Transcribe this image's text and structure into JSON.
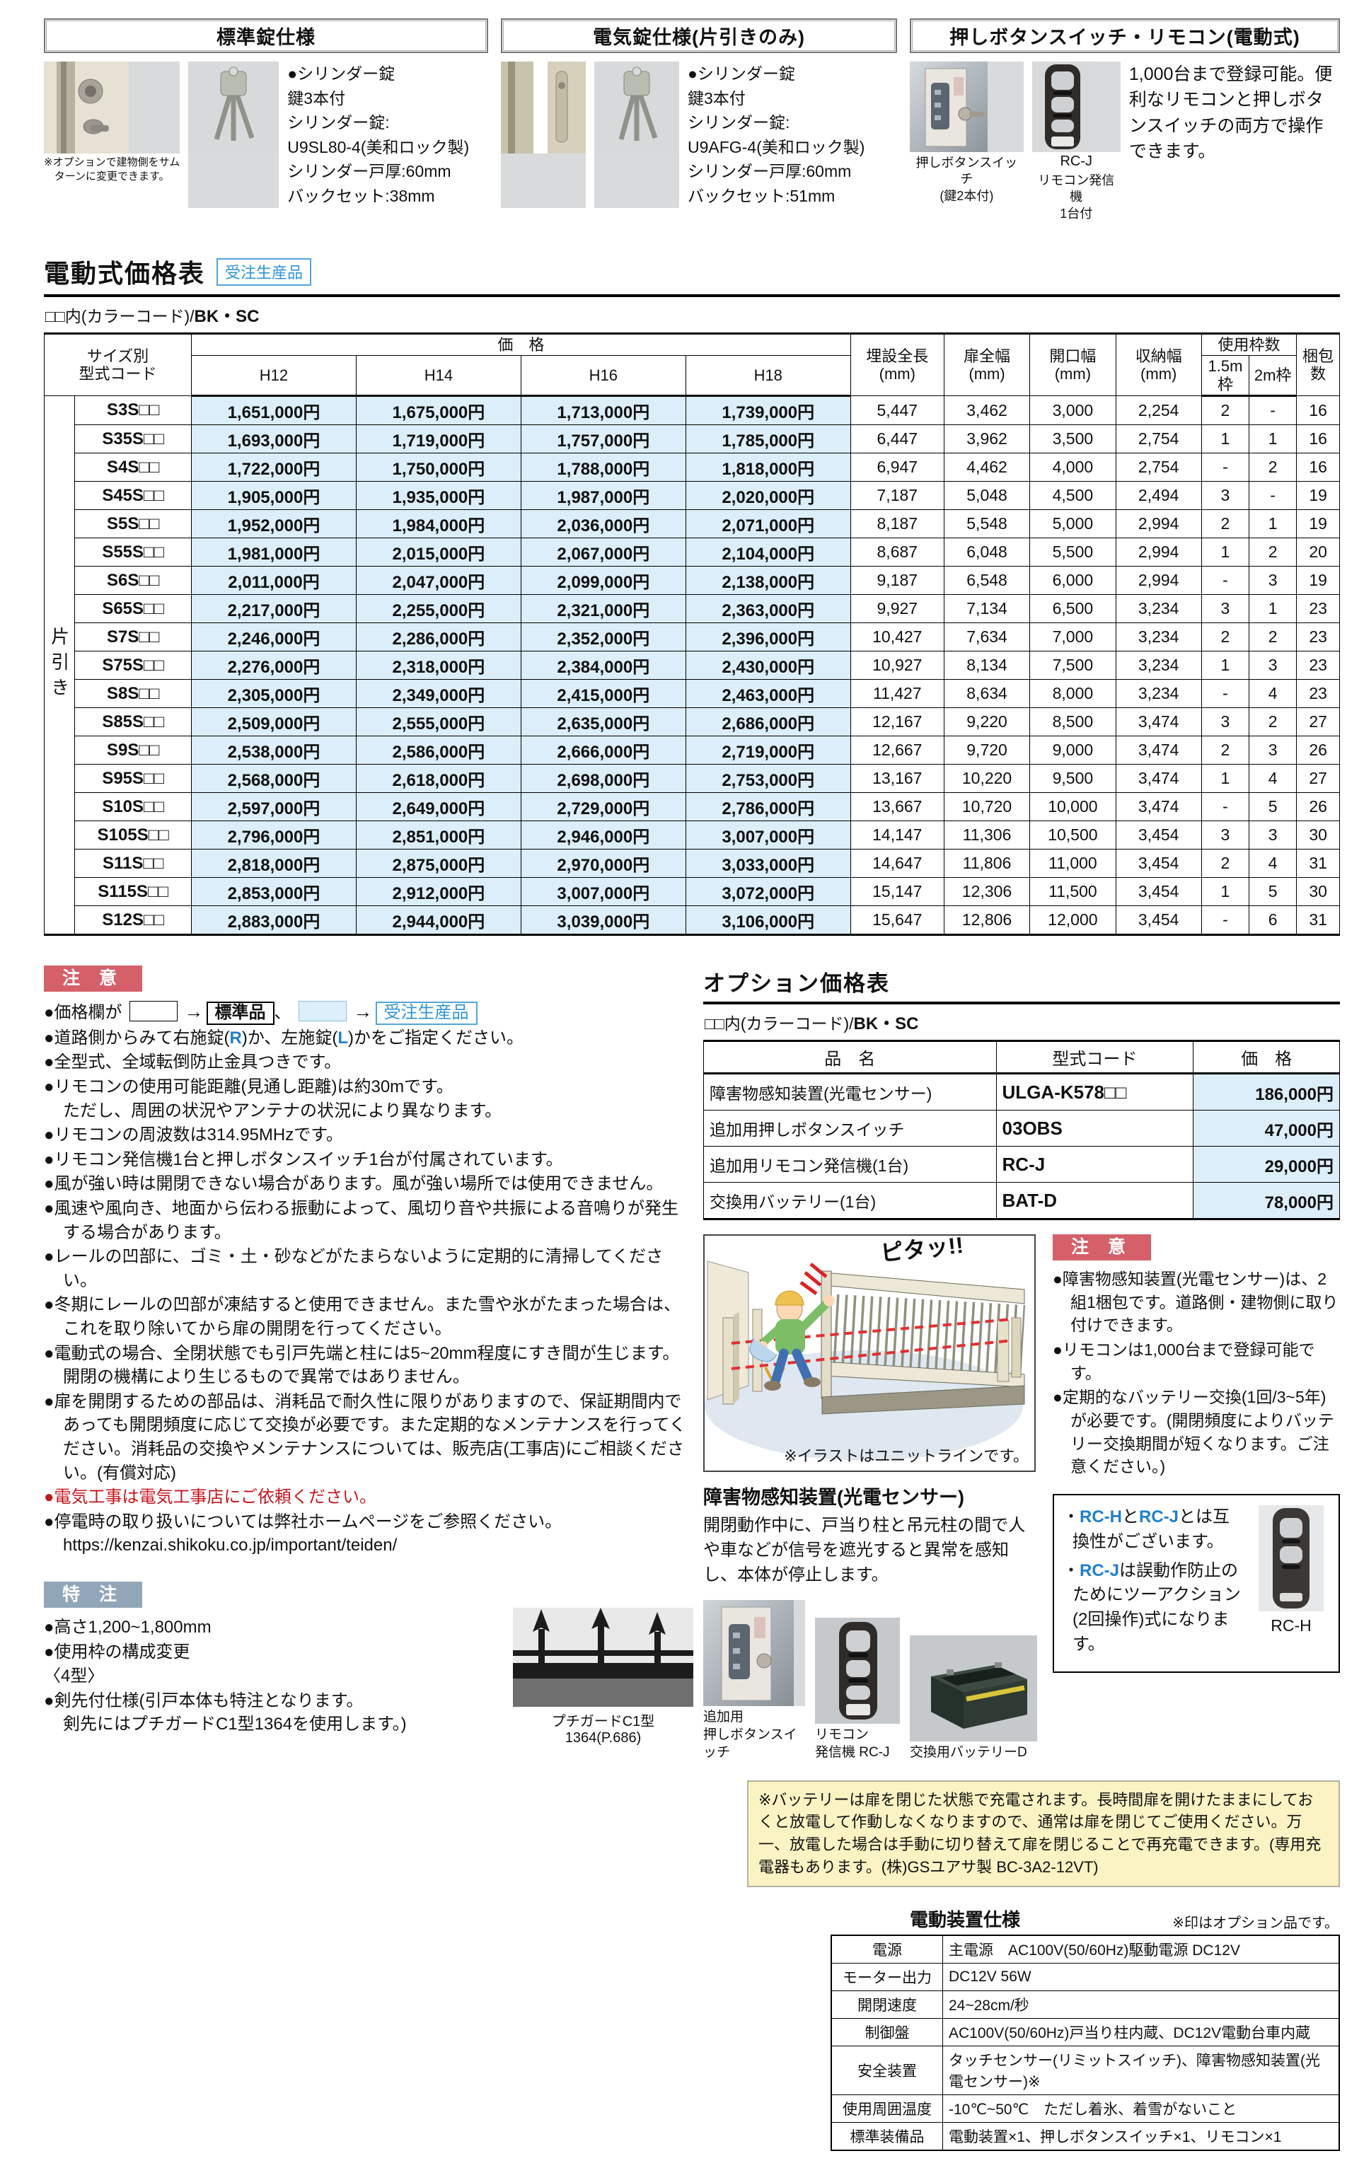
{
  "colors": {
    "price_bg": "#dceef9",
    "caution_red": "#d5606a",
    "special_gray": "#92a6b9",
    "order_blue": "#2e96d5",
    "note_red_text": "#c7161d",
    "rl_blue": "#1f7fd0",
    "battery_note_bg": "#fbf3c3"
  },
  "top": {
    "standard_lock": {
      "title": "標準錠仕様",
      "photo_caption": "※オプションで建物側をサム\nターンに変更できます。",
      "lines": "●シリンダー錠\n鍵3本付\nシリンダー錠:\nU9SL80-4(美和ロック製)\nシリンダー戸厚:60mm\nバックセット:38mm"
    },
    "electric_lock": {
      "title": "電気錠仕様(片引きのみ)",
      "lines": "●シリンダー錠\n鍵3本付\nシリンダー錠:\nU9AFG-4(美和ロック製)\nシリンダー戸厚:60mm\nバックセット:51mm"
    },
    "switch_remote": {
      "title": "押しボタンスイッチ・リモコン(電動式)",
      "description": "1,000台まで登録可能。便利なリモコンと押しボタンスイッチの両方で操作できます。",
      "switch_caption": "押しボタンスイッチ\n(鍵2本付)",
      "remote_model": "RC-J",
      "remote_caption": "リモコン発信機\n1台付"
    }
  },
  "price_table": {
    "title": "電動式価格表",
    "badge": "受注生産品",
    "color_note_prefix": "□□内(カラーコード)/",
    "color_note_bold": "BK・SC",
    "side_label": "片引き",
    "headers": {
      "size_code": "サイズ別\n型式コード",
      "price_group": "価　格",
      "price_cols": [
        "H12",
        "H14",
        "H16",
        "H18"
      ],
      "burial": "埋設全長\n(mm)",
      "door_width": "扉全幅\n(mm)",
      "opening_width": "開口幅\n(mm)",
      "storage_width": "収納幅\n(mm)",
      "frames_group": "使用枠数",
      "frame_cols": [
        "1.5m枠",
        "2m枠"
      ],
      "packages": "梱包\n数"
    },
    "rows": [
      [
        "S3S□□",
        "1,651,000円",
        "1,675,000円",
        "1,713,000円",
        "1,739,000円",
        "5,447",
        "3,462",
        "3,000",
        "2,254",
        "2",
        "-",
        "16"
      ],
      [
        "S35S□□",
        "1,693,000円",
        "1,719,000円",
        "1,757,000円",
        "1,785,000円",
        "6,447",
        "3,962",
        "3,500",
        "2,754",
        "1",
        "1",
        "16"
      ],
      [
        "S4S□□",
        "1,722,000円",
        "1,750,000円",
        "1,788,000円",
        "1,818,000円",
        "6,947",
        "4,462",
        "4,000",
        "2,754",
        "-",
        "2",
        "16"
      ],
      [
        "S45S□□",
        "1,905,000円",
        "1,935,000円",
        "1,987,000円",
        "2,020,000円",
        "7,187",
        "5,048",
        "4,500",
        "2,494",
        "3",
        "-",
        "19"
      ],
      [
        "S5S□□",
        "1,952,000円",
        "1,984,000円",
        "2,036,000円",
        "2,071,000円",
        "8,187",
        "5,548",
        "5,000",
        "2,994",
        "2",
        "1",
        "19"
      ],
      [
        "S55S□□",
        "1,981,000円",
        "2,015,000円",
        "2,067,000円",
        "2,104,000円",
        "8,687",
        "6,048",
        "5,500",
        "2,994",
        "1",
        "2",
        "20"
      ],
      [
        "S6S□□",
        "2,011,000円",
        "2,047,000円",
        "2,099,000円",
        "2,138,000円",
        "9,187",
        "6,548",
        "6,000",
        "2,994",
        "-",
        "3",
        "19"
      ],
      [
        "S65S□□",
        "2,217,000円",
        "2,255,000円",
        "2,321,000円",
        "2,363,000円",
        "9,927",
        "7,134",
        "6,500",
        "3,234",
        "3",
        "1",
        "23"
      ],
      [
        "S7S□□",
        "2,246,000円",
        "2,286,000円",
        "2,352,000円",
        "2,396,000円",
        "10,427",
        "7,634",
        "7,000",
        "3,234",
        "2",
        "2",
        "23"
      ],
      [
        "S75S□□",
        "2,276,000円",
        "2,318,000円",
        "2,384,000円",
        "2,430,000円",
        "10,927",
        "8,134",
        "7,500",
        "3,234",
        "1",
        "3",
        "23"
      ],
      [
        "S8S□□",
        "2,305,000円",
        "2,349,000円",
        "2,415,000円",
        "2,463,000円",
        "11,427",
        "8,634",
        "8,000",
        "3,234",
        "-",
        "4",
        "23"
      ],
      [
        "S85S□□",
        "2,509,000円",
        "2,555,000円",
        "2,635,000円",
        "2,686,000円",
        "12,167",
        "9,220",
        "8,500",
        "3,474",
        "3",
        "2",
        "27"
      ],
      [
        "S9S□□",
        "2,538,000円",
        "2,586,000円",
        "2,666,000円",
        "2,719,000円",
        "12,667",
        "9,720",
        "9,000",
        "3,474",
        "2",
        "3",
        "26"
      ],
      [
        "S95S□□",
        "2,568,000円",
        "2,618,000円",
        "2,698,000円",
        "2,753,000円",
        "13,167",
        "10,220",
        "9,500",
        "3,474",
        "1",
        "4",
        "27"
      ],
      [
        "S10S□□",
        "2,597,000円",
        "2,649,000円",
        "2,729,000円",
        "2,786,000円",
        "13,667",
        "10,720",
        "10,000",
        "3,474",
        "-",
        "5",
        "26"
      ],
      [
        "S105S□□",
        "2,796,000円",
        "2,851,000円",
        "2,946,000円",
        "3,007,000円",
        "14,147",
        "11,306",
        "10,500",
        "3,454",
        "3",
        "3",
        "30"
      ],
      [
        "S11S□□",
        "2,818,000円",
        "2,875,000円",
        "2,970,000円",
        "3,033,000円",
        "14,647",
        "11,806",
        "11,000",
        "3,454",
        "2",
        "4",
        "31"
      ],
      [
        "S115S□□",
        "2,853,000円",
        "2,912,000円",
        "3,007,000円",
        "3,072,000円",
        "15,147",
        "12,306",
        "11,500",
        "3,454",
        "1",
        "5",
        "30"
      ],
      [
        "S12S□□",
        "2,883,000円",
        "2,944,000円",
        "3,039,000円",
        "3,106,000円",
        "15,647",
        "12,806",
        "12,000",
        "3,454",
        "-",
        "6",
        "31"
      ]
    ]
  },
  "caution": {
    "badge": "注 意",
    "legend": {
      "prefix": "●価格欄が",
      "arrow": "→",
      "standard_label": "標準品",
      "separator": "、",
      "order_label": "受注生産品"
    },
    "items": [
      {
        "type": "legend"
      },
      {
        "segs": [
          "●道路側からみて右施錠(",
          [
            "R",
            "blue"
          ],
          ")か、左施錠(",
          [
            "L",
            "blue"
          ],
          ")かをご指定ください。"
        ]
      },
      {
        "text": "●全型式、全域転倒防止金具つきです。"
      },
      {
        "text": "●リモコンの使用可能距離(見通し距離)は約30mです。",
        "text2": "ただし、周囲の状況やアンテナの状況により異なります。"
      },
      {
        "text": "●リモコンの周波数は314.95MHzです。"
      },
      {
        "text": "●リモコン発信機1台と押しボタンスイッチ1台が付属されています。"
      },
      {
        "text": "●風が強い時は開閉できない場合があります。風が強い場所では使用できません。"
      },
      {
        "text": "●風速や風向き、地面から伝わる振動によって、風切り音や共振による音鳴りが発生する場合があります。"
      },
      {
        "text": "●レールの凹部に、ゴミ・土・砂などがたまらないように定期的に清掃してください。"
      },
      {
        "text": "●冬期にレールの凹部が凍結すると使用できません。また雪や氷がたまった場合は、これを取り除いてから扉の開閉を行ってください。"
      },
      {
        "text": "●電動式の場合、全閉状態でも引戸先端と柱には5~20mm程度にすき間が生じます。開閉の機構により生じるもので異常ではありません。"
      },
      {
        "text": "●扉を開閉するための部品は、消耗品で耐久性に限りがありますので、保証期間内であっても開閉頻度に応じて交換が必要です。また定期的なメンテナンスを行ってください。消耗品の交換やメンテナンスについては、販売店(工事店)にご相談ください。(有償対応)"
      },
      {
        "text": "●電気工事は電気工事店にご依頼ください。",
        "red": true
      },
      {
        "text": "●停電時の取り扱いについては弊社ホームページをご参照ください。",
        "text2": "https://kenzai.shikoku.co.jp/important/teiden/"
      }
    ]
  },
  "special": {
    "badge": "特 注",
    "items": [
      {
        "text": "●高さ1,200~1,800mm"
      },
      {
        "text": "●使用枠の構成変更"
      },
      {
        "text": "〈4型〉"
      },
      {
        "text": "●剣先付仕様(引戸本体も特注となります。",
        "text2": "剣先にはプチガードC1型1364を使用します。)"
      }
    ],
    "photo_caption": "プチガードC1型 1364(P.686)"
  },
  "options": {
    "title": "オプション価格表",
    "color_note_prefix": "□□内(カラーコード)/",
    "color_note_bold": "BK・SC",
    "headers": [
      "品　名",
      "型式コード",
      "価　格"
    ],
    "rows": [
      [
        "障害物感知装置(光電センサー)",
        "ULGA-K578□□",
        "186,000円"
      ],
      [
        "追加用押しボタンスイッチ",
        "03OBS",
        "47,000円"
      ],
      [
        "追加用リモコン発信機(1台)",
        "RC-J",
        "29,000円"
      ],
      [
        "交換用バッテリー(1台)",
        "BAT-D",
        "78,000円"
      ]
    ]
  },
  "caution2": {
    "badge": "注 意",
    "items": [
      "●障害物感知装置(光電センサー)は、2組1梱包です。道路側・建物側に取り付けできます。",
      "●リモコンは1,000台まで登録可能です。",
      "●定期的なバッテリー交換(1回/3~5年)が必要です。(開閉頻度によりバッテリー交換期間が短くなります。ご注意ください。)"
    ]
  },
  "sensor": {
    "illustration_label": "ピタッ!!",
    "illustration_caption": "※イラストはユニットラインです。",
    "heading": "障害物感知装置(光電センサー)",
    "body": "開閉動作中に、戸当り柱と吊元柱の間で人や車などが信号を遮光すると異常を感知し、本体が停止します。",
    "photo_captions": [
      "追加用\n押しボタンスイッチ",
      "リモコン\n発信機 RC-J",
      "交換用バッテリーD"
    ]
  },
  "rc_note": {
    "lines": [
      [
        "・",
        [
          "RC-H",
          "b"
        ],
        "と",
        [
          "RC-J",
          "b"
        ],
        "とは互換性がございます。"
      ],
      [
        "・",
        [
          "RC-J",
          "b"
        ],
        "は誤動作防止のためにツーアクション(2回操作)式になります。"
      ]
    ],
    "photo_caption": "RC-H"
  },
  "battery_note": "※バッテリーは扉を閉じた状態で充電されます。長時間扉を開けたままにしておくと放電して作動しなくなりますので、通常は扉を閉じてご使用ください。万一、放電した場合は手動に切り替えて扉を閉じることで再充電できます。(専用充電器もあります。(株)GSユアサ製 BC-3A2-12VT)",
  "spec": {
    "title": "電動装置仕様",
    "note": "※印はオプション品です。",
    "rows": [
      [
        "電源",
        "主電源　AC100V(50/60Hz)駆動電源 DC12V"
      ],
      [
        "モーター出力",
        "DC12V 56W"
      ],
      [
        "開閉速度",
        "24~28cm/秒"
      ],
      [
        "制御盤",
        "AC100V(50/60Hz)戸当り柱内蔵、DC12V電動台車内蔵"
      ],
      [
        "安全装置",
        "タッチセンサー(リミットスイッチ)、障害物感知装置(光電センサー)※"
      ],
      [
        "使用周囲温度",
        "-10℃~50℃　ただし着氷、着雪がないこと"
      ],
      [
        "標準装備品",
        "電動装置×1、押しボタンスイッチ×1、リモコン×1"
      ]
    ]
  }
}
